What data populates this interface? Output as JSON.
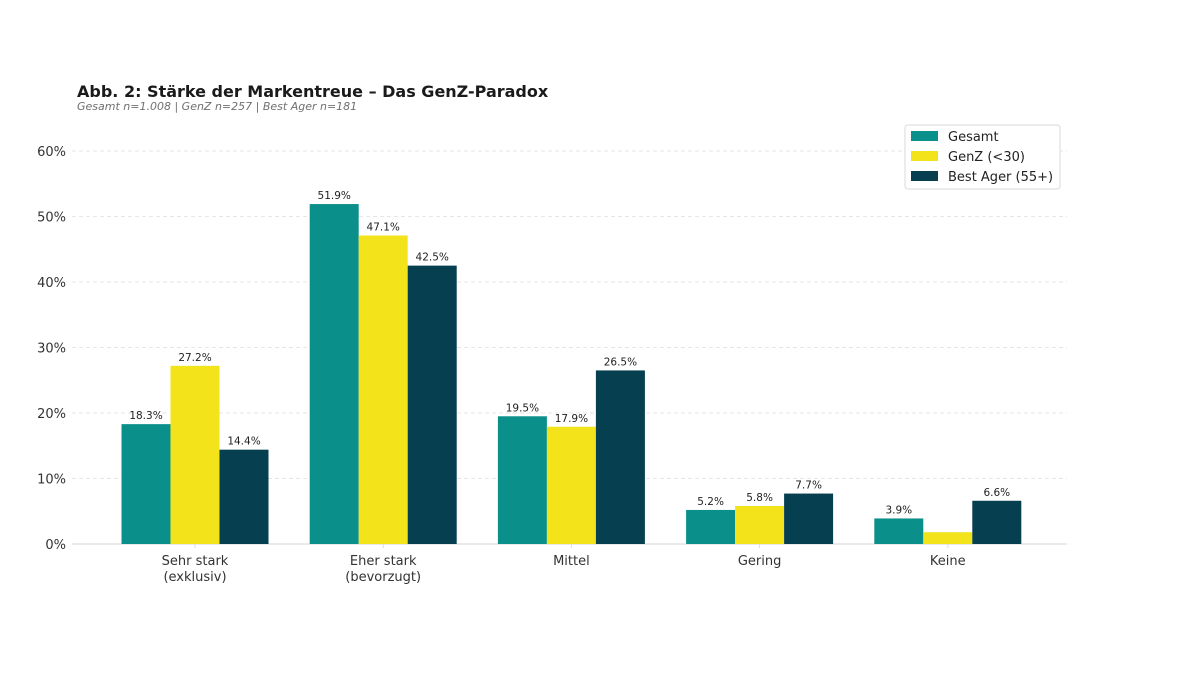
{
  "chart_data": {
    "type": "bar",
    "title": "Abb. 2: Stärke der Markentreue – Das GenZ-Paradox",
    "subtitle": "Gesamt n=1.008 | GenZ n=257 | Best Ager n=181",
    "xlabel": "",
    "ylabel": "",
    "ylim": [
      0,
      60
    ],
    "yticks": [
      0,
      10,
      20,
      30,
      40,
      50,
      60
    ],
    "ytick_labels": [
      "0%",
      "10%",
      "20%",
      "30%",
      "40%",
      "50%",
      "60%"
    ],
    "grid": true,
    "legend_position": "top-right",
    "categories": [
      [
        "Sehr stark",
        "(exklusiv)"
      ],
      [
        "Eher stark",
        "(bevorzugt)"
      ],
      [
        "Mittel"
      ],
      [
        "Gering"
      ],
      [
        "Keine"
      ]
    ],
    "series": [
      {
        "name": "Gesamt",
        "color": "#0b8f8b",
        "values": [
          18.3,
          51.9,
          19.5,
          5.2,
          3.9
        ],
        "labels": [
          "18.3%",
          "51.9%",
          "19.5%",
          "5.2%",
          "3.9%"
        ]
      },
      {
        "name": "GenZ (<30)",
        "color": "#f2e31a",
        "values": [
          27.2,
          47.1,
          17.9,
          5.8,
          1.8
        ],
        "labels": [
          "27.2%",
          "47.1%",
          "17.9%",
          "5.8%",
          ""
        ]
      },
      {
        "name": "Best Ager (55+)",
        "color": "#063f4f",
        "values": [
          14.4,
          42.5,
          26.5,
          7.7,
          6.6
        ],
        "labels": [
          "14.4%",
          "42.5%",
          "26.5%",
          "7.7%",
          "6.6%"
        ]
      }
    ]
  }
}
